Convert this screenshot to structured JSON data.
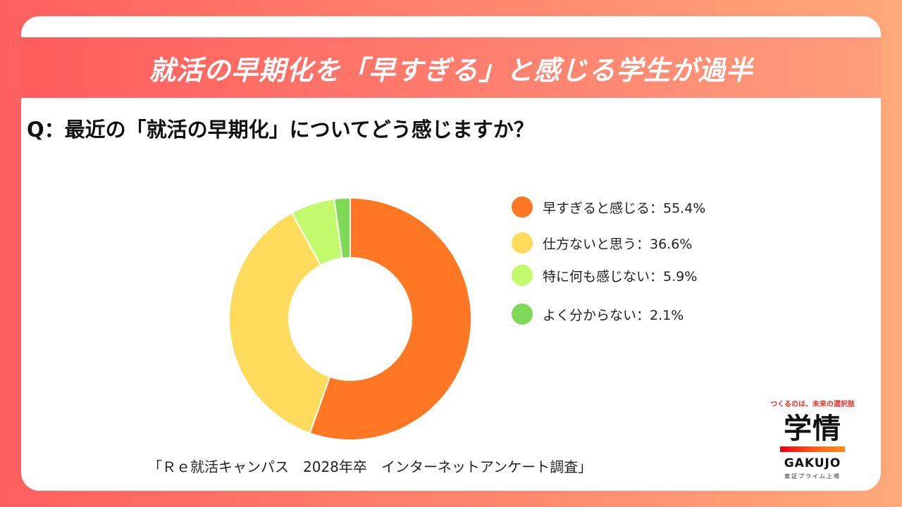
{
  "header": {
    "title": "就活の早期化を「早すぎる」と感じる学生が過半"
  },
  "question": "Q：最近の「就活の早期化」についてどう感じますか？",
  "chart_data": {
    "type": "pie",
    "subtype": "donut",
    "title": "就活の早期化を「早すぎる」と感じる学生が過半",
    "question": "Q：最近の「就活の早期化」についてどう感じますか？",
    "categories": [
      "早すぎると感じる",
      "仕方ないと思う",
      "特に何も感じない",
      "よく分からない"
    ],
    "values": [
      55.4,
      36.6,
      5.9,
      2.1
    ],
    "unit": "%",
    "colors": [
      "#ff7722",
      "#ffdb5c",
      "#c2fa6b",
      "#7ed957"
    ],
    "legend_position": "right",
    "legend_labels": [
      "早すぎると感じる：55.4%",
      "仕方ないと思う：36.6%",
      "特に何も感じない：5.9%",
      "よく分からない：2.1%"
    ]
  },
  "source": "「Ｒｅ就活キャンパス　2028年卒　インターネットアンケート調査」",
  "logo": {
    "tagline": "つくるのは、未来の選択肢",
    "mark": "学情",
    "name": "GAKUJO",
    "sub": "東証プライム上場"
  }
}
